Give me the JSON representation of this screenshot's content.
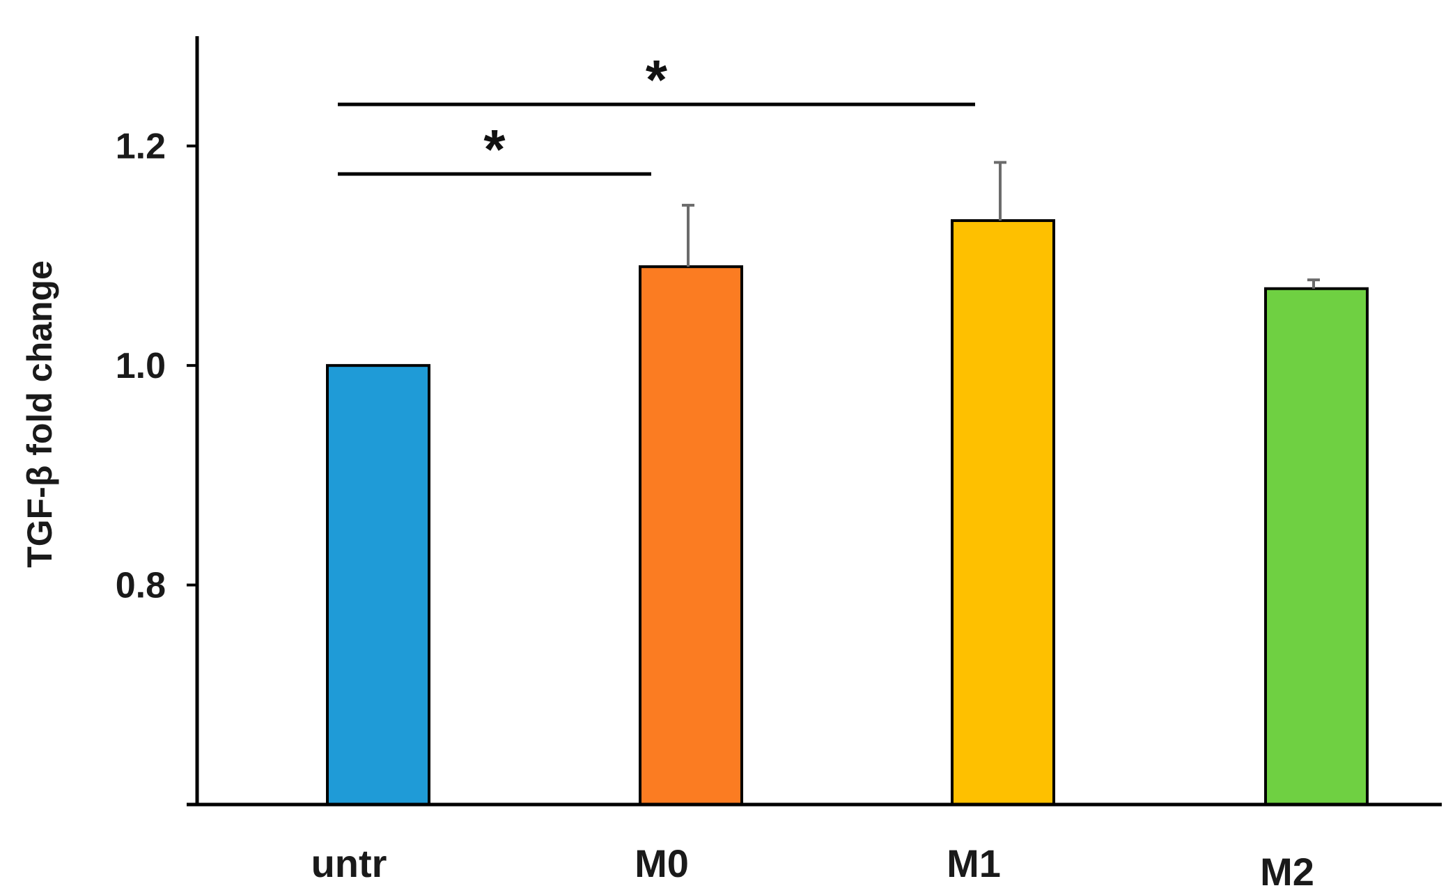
{
  "chart_data": {
    "type": "bar",
    "categories": [
      "untr",
      "M0",
      "M1",
      "M2"
    ],
    "values": [
      1.0,
      1.09,
      1.132,
      1.07
    ],
    "errors": [
      0.0,
      0.056,
      0.053,
      0.008
    ],
    "colors": [
      "#1f9bd7",
      "#fb7c22",
      "#fec000",
      "#6fd042"
    ],
    "ylabel": "TGF-β fold change",
    "ylim": [
      0.6,
      1.3
    ],
    "yticks": [
      0.8,
      1.0,
      1.2
    ],
    "ytick_labels": [
      "0.8",
      "1.0",
      "1.2"
    ],
    "grid": false,
    "significance": [
      {
        "from": "untr",
        "to": "M0",
        "label": "*"
      },
      {
        "from": "untr",
        "to": "M1",
        "label": "*"
      }
    ]
  }
}
